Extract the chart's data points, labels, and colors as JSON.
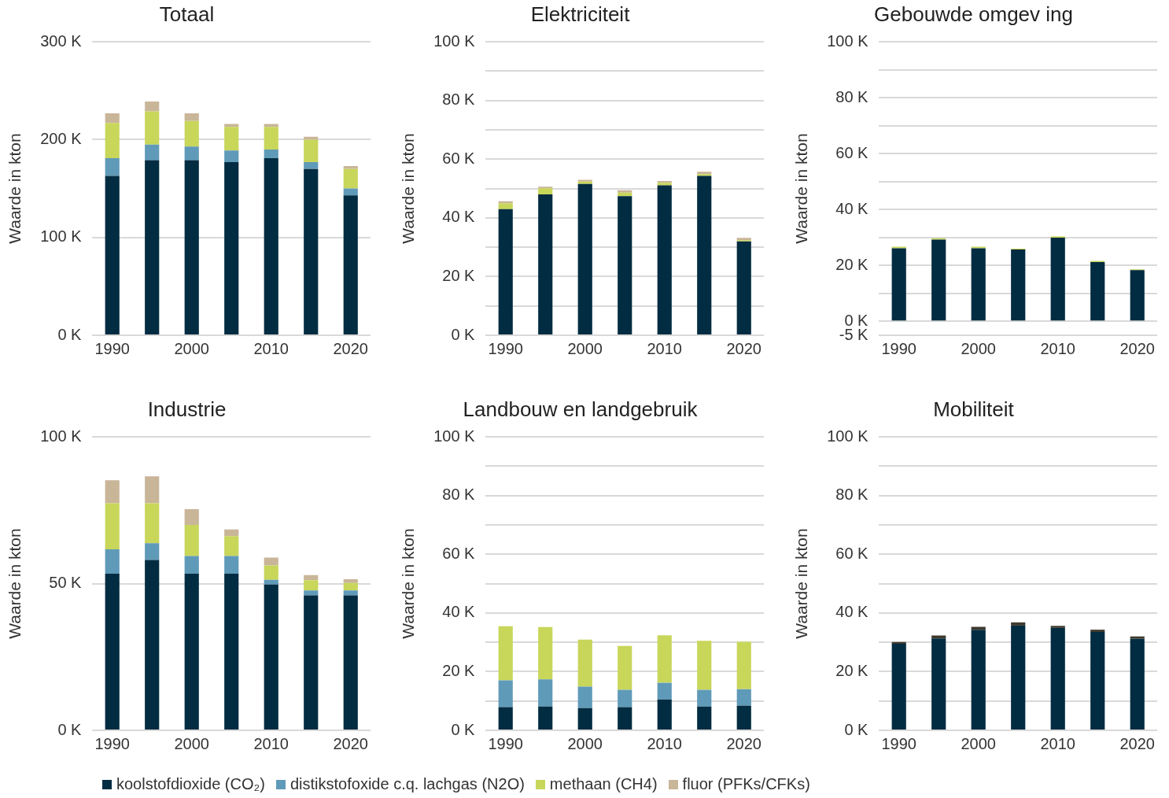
{
  "chart_data": [
    {
      "type": "bar",
      "title": "Totaal",
      "ylabel": "Waarde in kton",
      "stacked": true,
      "grid": "y",
      "legend": "bottom",
      "categories": [
        "1990",
        null,
        "2000",
        null,
        "2010",
        null,
        "2020"
      ],
      "ylim": [
        0,
        300000
      ],
      "yticks": [
        {
          "value": 0,
          "label": "0 K"
        },
        {
          "value": 100000,
          "label": "100 K"
        },
        {
          "value": 200000,
          "label": "200 K"
        },
        {
          "value": 300000,
          "label": "300 K"
        }
      ],
      "series": [
        {
          "name": "koolstofdioxide (CO₂)",
          "color": "#022c41",
          "values": [
            163000,
            179000,
            179000,
            177000,
            181000,
            170000,
            143000
          ]
        },
        {
          "name": "distikstofoxide c.q. lachgas (N2O)",
          "color": "#5f9ab9",
          "values": [
            18000,
            16000,
            14000,
            12000,
            9000,
            7000,
            7000
          ]
        },
        {
          "name": "methaan (CH4)",
          "color": "#c8d65a",
          "values": [
            36000,
            34000,
            26000,
            24000,
            23000,
            23000,
            20000
          ]
        },
        {
          "name": "fluor (PFKs/CFKs)",
          "color": "#c9b598",
          "values": [
            10000,
            10000,
            8000,
            3000,
            3000,
            3000,
            3000
          ]
        }
      ]
    },
    {
      "type": "bar",
      "title": "Elektriciteit",
      "ylabel": "Waarde in kton",
      "stacked": true,
      "grid": "y",
      "categories": [
        "1990",
        null,
        "2000",
        null,
        "2010",
        null,
        "2020"
      ],
      "ylim": [
        0,
        100000
      ],
      "yticks": [
        {
          "value": 0,
          "label": "0 K"
        },
        {
          "value": 10000,
          "label": null
        },
        {
          "value": 20000,
          "label": "20 K"
        },
        {
          "value": 30000,
          "label": null
        },
        {
          "value": 40000,
          "label": "40 K"
        },
        {
          "value": 50000,
          "label": null
        },
        {
          "value": 60000,
          "label": "60 K"
        },
        {
          "value": 70000,
          "label": null
        },
        {
          "value": 80000,
          "label": "80 K"
        },
        {
          "value": 90000,
          "label": null
        },
        {
          "value": 100000,
          "label": "100 K"
        }
      ],
      "series": [
        {
          "color": "#022c41",
          "values": [
            43000,
            48000,
            51600,
            47400,
            51100,
            54300,
            32000
          ]
        },
        {
          "color": "#c8d65a",
          "values": [
            2000,
            2100,
            800,
            1200,
            900,
            600,
            400
          ]
        },
        {
          "color": "#c9b598",
          "values": [
            700,
            500,
            600,
            800,
            600,
            800,
            800
          ]
        }
      ]
    },
    {
      "type": "bar",
      "title": "Gebouwde omgev ing",
      "ylabel": "Waarde in kton",
      "stacked": true,
      "grid": "y",
      "categories": [
        "1990",
        null,
        "2000",
        null,
        "2010",
        null,
        "2020"
      ],
      "ylim": [
        -5000,
        100000
      ],
      "yticks": [
        {
          "value": -5000,
          "label": "-5 K"
        },
        {
          "value": 0,
          "label": "0 K"
        },
        {
          "value": 10000,
          "label": null
        },
        {
          "value": 20000,
          "label": "20 K"
        },
        {
          "value": 30000,
          "label": null
        },
        {
          "value": 40000,
          "label": "40 K"
        },
        {
          "value": 50000,
          "label": null
        },
        {
          "value": 60000,
          "label": "60 K"
        },
        {
          "value": 70000,
          "label": null
        },
        {
          "value": 80000,
          "label": "80 K"
        },
        {
          "value": 90000,
          "label": null
        },
        {
          "value": 100000,
          "label": "100 K"
        }
      ],
      "series": [
        {
          "color": "#022c41",
          "values": [
            26100,
            29200,
            26100,
            25700,
            29900,
            21200,
            18300
          ]
        },
        {
          "color": "#c8d65a",
          "values": [
            600,
            500,
            600,
            300,
            500,
            400,
            300
          ]
        }
      ]
    },
    {
      "type": "bar",
      "title": "Industrie",
      "ylabel": "Waarde in kton",
      "stacked": true,
      "grid": "y",
      "categories": [
        "1990",
        null,
        "2000",
        null,
        "2010",
        null,
        "2020"
      ],
      "ylim": [
        0,
        100000
      ],
      "yticks": [
        {
          "value": 0,
          "label": "0 K"
        },
        {
          "value": 50000,
          "label": "50 K"
        },
        {
          "value": 100000,
          "label": "100 K"
        }
      ],
      "series": [
        {
          "color": "#022c41",
          "values": [
            53400,
            58100,
            53400,
            53400,
            49700,
            46000,
            46000
          ]
        },
        {
          "color": "#5f9ab9",
          "values": [
            8300,
            5700,
            6000,
            6000,
            1600,
            1700,
            1700
          ]
        },
        {
          "color": "#c8d65a",
          "values": [
            15700,
            13600,
            10600,
            6800,
            4900,
            3500,
            2500
          ]
        },
        {
          "color": "#c9b598",
          "values": [
            7800,
            9200,
            5400,
            2300,
            2700,
            1700,
            1300
          ]
        }
      ]
    },
    {
      "type": "bar",
      "title": "Landbouw en landgebruik",
      "ylabel": "Waarde in kton",
      "stacked": true,
      "grid": "y",
      "categories": [
        "1990",
        null,
        "2000",
        null,
        "2010",
        null,
        "2020"
      ],
      "ylim": [
        0,
        100000
      ],
      "yticks": [
        {
          "value": 0,
          "label": "0 K"
        },
        {
          "value": 10000,
          "label": null
        },
        {
          "value": 20000,
          "label": "20 K"
        },
        {
          "value": 30000,
          "label": null
        },
        {
          "value": 40000,
          "label": "40 K"
        },
        {
          "value": 50000,
          "label": null
        },
        {
          "value": 60000,
          "label": "60 K"
        },
        {
          "value": 70000,
          "label": null
        },
        {
          "value": 80000,
          "label": "80 K"
        },
        {
          "value": 90000,
          "label": null
        },
        {
          "value": 100000,
          "label": "100 K"
        }
      ],
      "series": [
        {
          "color": "#022c41",
          "values": [
            7900,
            8100,
            7600,
            7900,
            10500,
            8100,
            8400
          ]
        },
        {
          "color": "#5f9ab9",
          "values": [
            9100,
            9300,
            7300,
            5900,
            5700,
            5700,
            5600
          ]
        },
        {
          "color": "#c8d65a",
          "values": [
            18500,
            17800,
            16000,
            15000,
            16200,
            16700,
            16200
          ]
        }
      ]
    },
    {
      "type": "bar",
      "title": "Mobiliteit",
      "ylabel": "Waarde in kton",
      "stacked": true,
      "grid": "y",
      "categories": [
        "1990",
        null,
        "2000",
        null,
        "2010",
        null,
        "2020"
      ],
      "ylim": [
        0,
        100000
      ],
      "yticks": [
        {
          "value": 0,
          "label": "0 K"
        },
        {
          "value": 10000,
          "label": null
        },
        {
          "value": 20000,
          "label": "20 K"
        },
        {
          "value": 30000,
          "label": null
        },
        {
          "value": 40000,
          "label": "40 K"
        },
        {
          "value": 50000,
          "label": null
        },
        {
          "value": 60000,
          "label": "60 K"
        },
        {
          "value": 70000,
          "label": null
        },
        {
          "value": 80000,
          "label": "80 K"
        },
        {
          "value": 90000,
          "label": null
        },
        {
          "value": 100000,
          "label": "100 K"
        }
      ],
      "series": [
        {
          "color": "#022c41",
          "values": [
            29500,
            31300,
            34300,
            35700,
            34900,
            33500,
            31200
          ]
        },
        {
          "color": "#3f3a2e",
          "values": [
            600,
            1000,
            1000,
            1100,
            700,
            800,
            800
          ]
        }
      ]
    }
  ]
}
